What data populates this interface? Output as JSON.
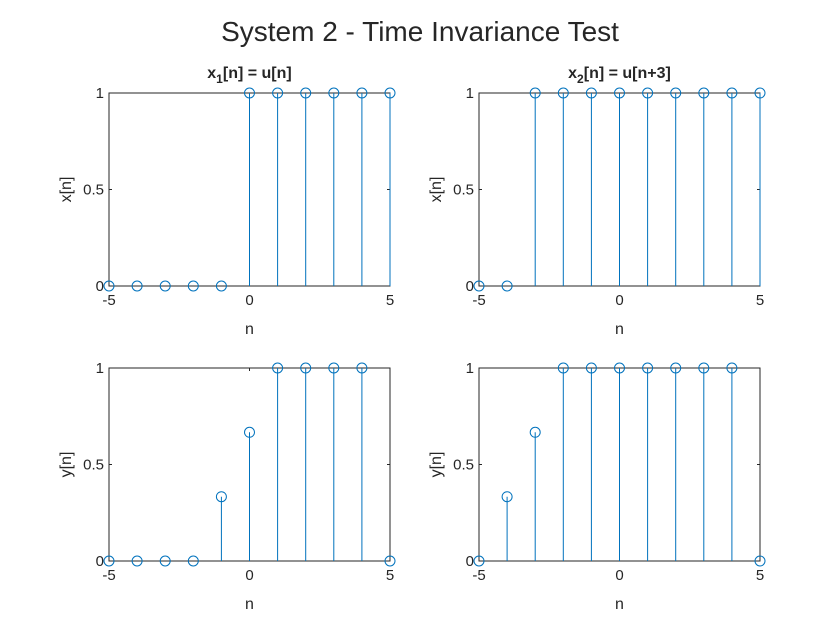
{
  "figure": {
    "title": "System 2 - Time Invariance Test",
    "stem_color": "#0072BD"
  },
  "chart_data": [
    {
      "type": "stem",
      "title_parts": {
        "base": "x",
        "sub": "1",
        "rest": "[n] = u[n]"
      },
      "xlabel": "n",
      "ylabel": "x[n]",
      "xlim": [
        -5,
        5
      ],
      "ylim": [
        0,
        1
      ],
      "xticks": [
        "-5",
        "0",
        "5"
      ],
      "yticks": [
        "0",
        "0.5",
        "1"
      ],
      "x": [
        -5,
        -4,
        -3,
        -2,
        -1,
        0,
        1,
        2,
        3,
        4,
        5
      ],
      "y": [
        0,
        0,
        0,
        0,
        0,
        1,
        1,
        1,
        1,
        1,
        1
      ]
    },
    {
      "type": "stem",
      "title_parts": {
        "base": "x",
        "sub": "2",
        "rest": "[n] = u[n+3]"
      },
      "xlabel": "n",
      "ylabel": "x[n]",
      "xlim": [
        -5,
        5
      ],
      "ylim": [
        0,
        1
      ],
      "xticks": [
        "-5",
        "0",
        "5"
      ],
      "yticks": [
        "0",
        "0.5",
        "1"
      ],
      "x": [
        -5,
        -4,
        -3,
        -2,
        -1,
        0,
        1,
        2,
        3,
        4,
        5
      ],
      "y": [
        0,
        0,
        1,
        1,
        1,
        1,
        1,
        1,
        1,
        1,
        1
      ]
    },
    {
      "type": "stem",
      "xlabel": "n",
      "ylabel": "y[n]",
      "xlim": [
        -5,
        5
      ],
      "ylim": [
        0,
        1
      ],
      "xticks": [
        "-5",
        "0",
        "5"
      ],
      "yticks": [
        "0",
        "0.5",
        "1"
      ],
      "x": [
        -5,
        -4,
        -3,
        -2,
        -1,
        0,
        1,
        2,
        3,
        4,
        5
      ],
      "y": [
        0,
        0,
        0,
        0,
        0.333,
        0.667,
        1,
        1,
        1,
        1,
        0
      ]
    },
    {
      "type": "stem",
      "xlabel": "n",
      "ylabel": "y[n]",
      "xlim": [
        -5,
        5
      ],
      "ylim": [
        0,
        1
      ],
      "xticks": [
        "-5",
        "0",
        "5"
      ],
      "yticks": [
        "0",
        "0.5",
        "1"
      ],
      "x": [
        -5,
        -4,
        -3,
        -2,
        -1,
        0,
        1,
        2,
        3,
        4,
        5
      ],
      "y": [
        0,
        0.333,
        0.667,
        1,
        1,
        1,
        1,
        1,
        1,
        1,
        0
      ]
    }
  ]
}
